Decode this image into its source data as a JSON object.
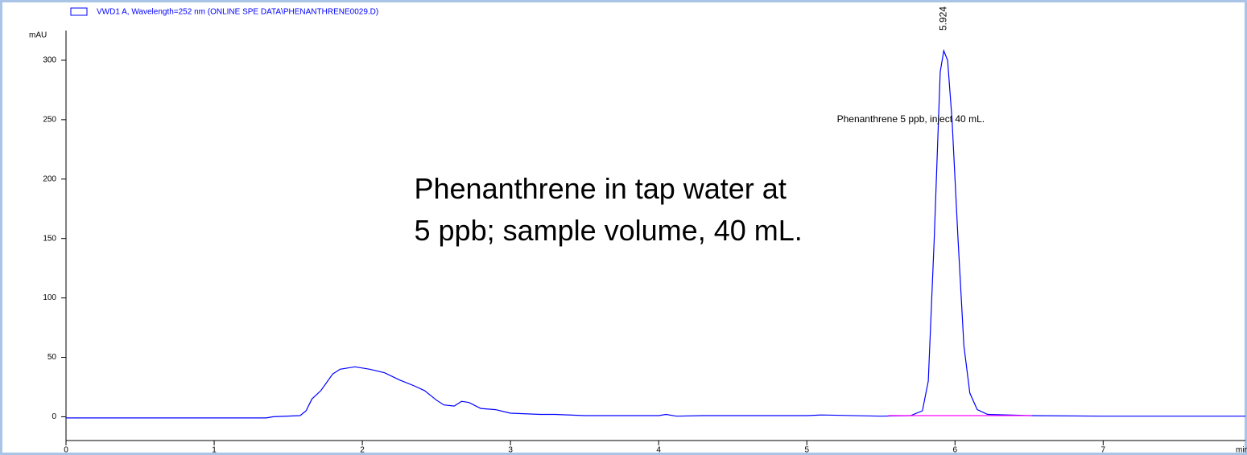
{
  "chart_data": {
    "type": "line",
    "series": [
      {
        "name": "VWD1 A, Wavelength=252 nm (ONLINE SPE DATA\\PHENANTHRENE0029.D)",
        "color": "#0000ff",
        "x": [
          0,
          1.35,
          1.4,
          1.58,
          1.62,
          1.66,
          1.72,
          1.8,
          1.85,
          1.95,
          2.05,
          2.15,
          2.25,
          2.35,
          2.42,
          2.5,
          2.55,
          2.62,
          2.67,
          2.72,
          2.8,
          2.9,
          3.0,
          3.2,
          3.3,
          3.5,
          4.0,
          4.05,
          4.12,
          4.3,
          4.5,
          5.0,
          5.1,
          5.5,
          5.7,
          5.78,
          5.82,
          5.86,
          5.9,
          5.924,
          5.95,
          5.98,
          6.02,
          6.06,
          6.1,
          6.15,
          6.22,
          6.5,
          7.0,
          7.96
        ],
        "values": [
          -1,
          -1,
          0,
          1,
          5,
          15,
          22,
          36,
          40,
          42,
          40,
          37,
          31,
          26,
          22,
          14,
          10,
          9,
          13,
          12,
          7,
          6,
          3,
          2,
          2,
          1,
          1,
          2,
          0.5,
          1,
          1,
          1,
          1.5,
          0.5,
          1,
          5,
          30,
          150,
          290,
          308,
          300,
          250,
          150,
          60,
          20,
          6,
          2,
          1,
          0.5,
          0.5
        ]
      },
      {
        "color": "#ff00ff",
        "x": [
          5.55,
          6.52
        ],
        "values": [
          1,
          1
        ]
      }
    ],
    "ylabel": "mAU",
    "xlabel": "min",
    "xlim": [
      0,
      7.96
    ],
    "ylim": [
      -20,
      325
    ],
    "xticks": [
      0,
      1,
      2,
      3,
      4,
      5,
      6,
      7
    ],
    "yticks": [
      0,
      50,
      100,
      150,
      200,
      250,
      300
    ],
    "peak_label": {
      "x": 5.924,
      "y": 325,
      "text": "5.924"
    },
    "sample_label": {
      "x": 6.2,
      "y": 250,
      "text": "Phenanthrene 5 ppb, inject 40 mL."
    },
    "caption": {
      "x": 2.35,
      "lines": [
        "Phenanthrene in tap water at",
        "5 ppb; sample volume, 40 mL."
      ],
      "y": [
        190,
        155
      ]
    }
  }
}
